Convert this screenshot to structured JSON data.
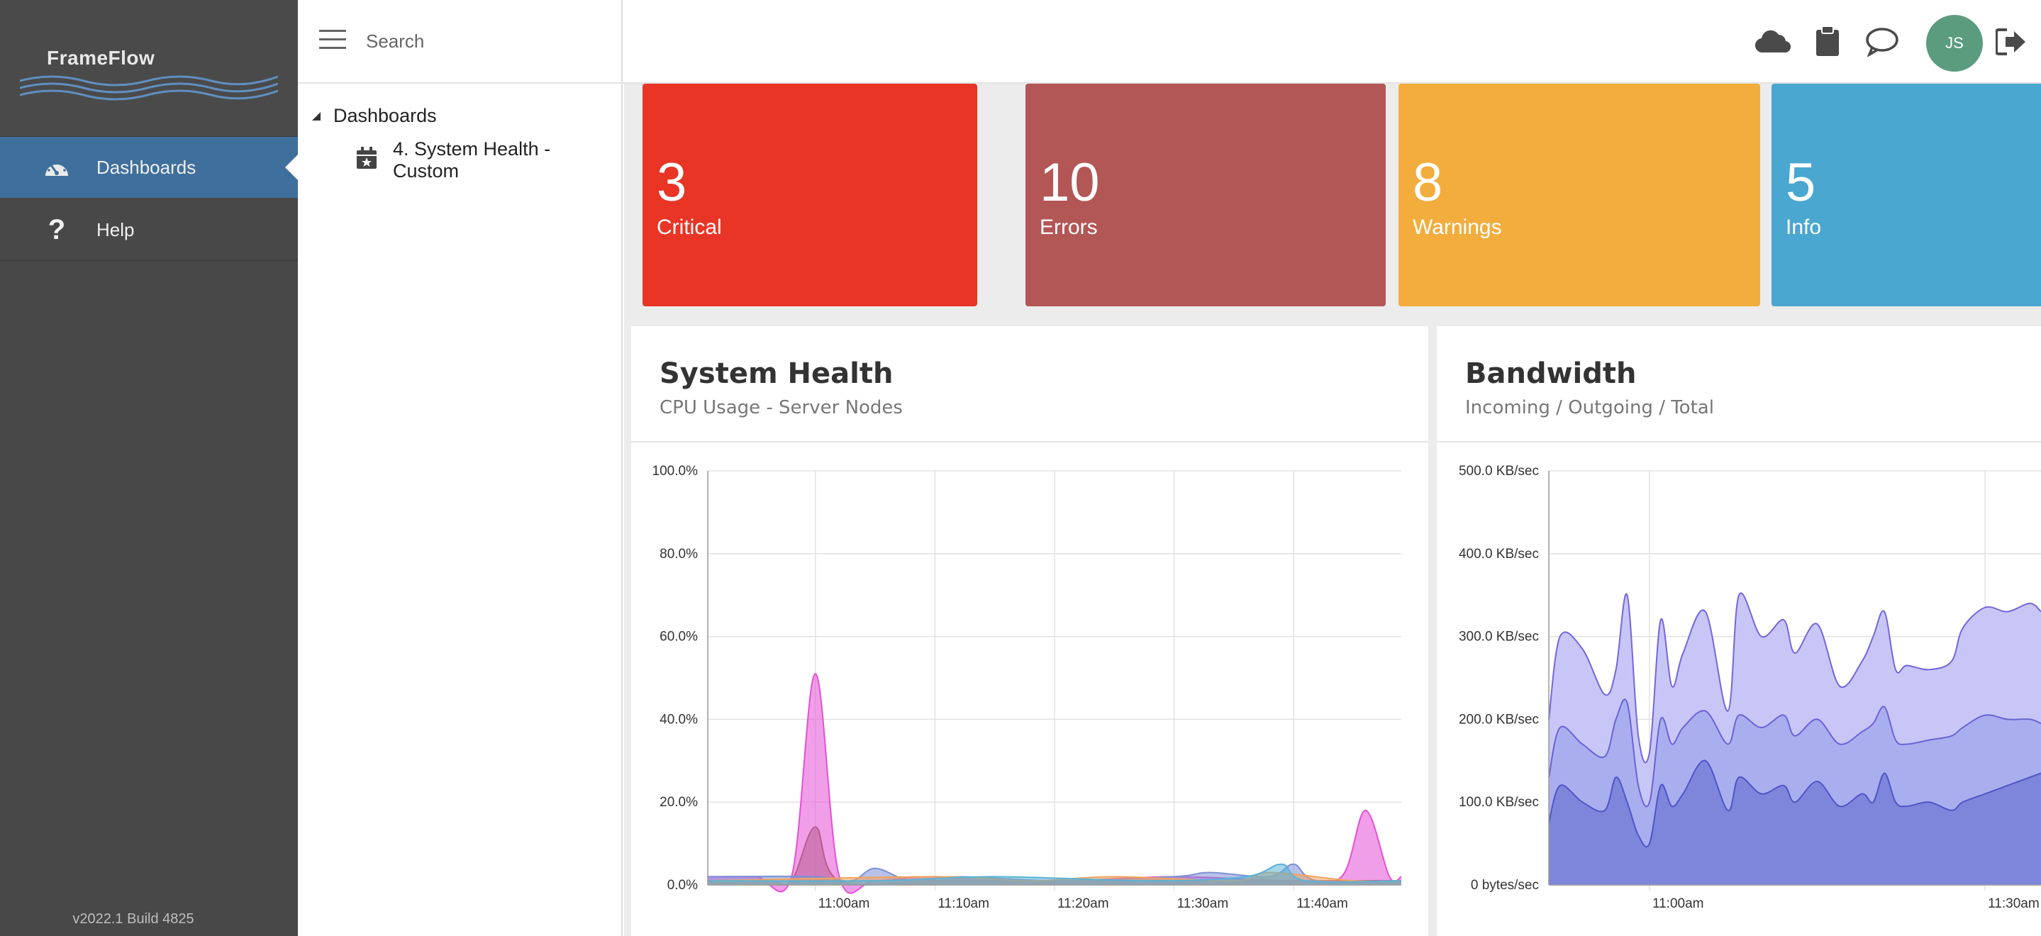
{
  "app": {
    "logo_text": "FrameFlow",
    "version": "v2022.1 Build 4825"
  },
  "sidebar": {
    "items": [
      {
        "label": "Dashboards",
        "icon": "speedometer-icon",
        "active": true
      },
      {
        "label": "Help",
        "icon": "question-icon",
        "active": false
      }
    ]
  },
  "search": {
    "placeholder": "Search",
    "value": ""
  },
  "tree": {
    "root_label": "Dashboards",
    "child_label": "4. System Health - Custom"
  },
  "topbar": {
    "icons": [
      "cloud-icon",
      "clipboard-icon",
      "chat-icon",
      "logout-icon"
    ],
    "avatar_initials": "JS"
  },
  "tiles": [
    {
      "value": "3",
      "label": "Critical",
      "color": "#e93526"
    },
    {
      "value": "10",
      "label": "Errors",
      "color": "#b35656"
    },
    {
      "value": "8",
      "label": "Warnings",
      "color": "#f2ad3d"
    },
    {
      "value": "5",
      "label": "Info",
      "color": "#4aa7cf"
    }
  ],
  "panels": {
    "system_health": {
      "title": "System Health",
      "subtitle": "CPU Usage - Server Nodes"
    },
    "bandwidth": {
      "title": "Bandwidth",
      "subtitle": "Incoming / Outgoing / Total"
    }
  },
  "chart_data": [
    {
      "type": "area",
      "title": "System Health",
      "subtitle": "CPU Usage - Server Nodes",
      "ylabel": "",
      "xlabel": "",
      "ylim": [
        0,
        100
      ],
      "y_ticks": [
        "0.0%",
        "20.0%",
        "40.0%",
        "60.0%",
        "80.0%",
        "100.0%"
      ],
      "x_ticks": [
        "11:00am",
        "11:10am",
        "11:20am",
        "11:30am",
        "11:40am"
      ],
      "x_range_minutes": [
        -9,
        49
      ],
      "grid": true,
      "series": [
        {
          "color": "#e64fd6",
          "x": [
            -9,
            -5,
            -2,
            0,
            2,
            5,
            10,
            20,
            30,
            40,
            44,
            46,
            48,
            49
          ],
          "values": [
            2,
            2,
            2,
            51,
            2,
            1,
            2,
            1,
            2,
            1,
            2,
            18,
            2,
            2
          ]
        },
        {
          "color": "#b85d8f",
          "x": [
            -9,
            -4,
            -2,
            0,
            2,
            10,
            20,
            30,
            40,
            49
          ],
          "values": [
            1,
            1,
            1,
            14,
            1,
            1,
            1,
            1,
            1,
            1
          ]
        },
        {
          "color": "#7d8fd6",
          "x": [
            -9,
            0,
            3,
            5,
            8,
            12,
            20,
            30,
            33,
            38,
            40,
            42,
            49
          ],
          "values": [
            2,
            2,
            1,
            4,
            1,
            2,
            1,
            2,
            3,
            2,
            5,
            1,
            1
          ]
        },
        {
          "color": "#f0a35e",
          "x": [
            -9,
            10,
            18,
            25,
            35,
            38,
            45,
            49
          ],
          "values": [
            1,
            2,
            1,
            2,
            1,
            3,
            1,
            1
          ]
        },
        {
          "color": "#59b3d6",
          "x": [
            -9,
            5,
            15,
            28,
            36,
            39,
            41,
            49
          ],
          "values": [
            1,
            1,
            2,
            1,
            2,
            5,
            1,
            1
          ]
        }
      ]
    },
    {
      "type": "area",
      "title": "Bandwidth",
      "subtitle": "Incoming / Outgoing / Total",
      "ylim": [
        0,
        500
      ],
      "y_ticks": [
        "0 bytes/sec",
        "100.0 KB/sec",
        "200.0 KB/sec",
        "300.0 KB/sec",
        "400.0 KB/sec",
        "500.0 KB/sec"
      ],
      "x_ticks": [
        "11:00am",
        "11:30am"
      ],
      "x_range_minutes": [
        -9,
        35
      ],
      "grid": true,
      "series": [
        {
          "name": "Total",
          "color": "#c5c3f5",
          "line": "#7466dc",
          "x": [
            -9,
            -8,
            -6,
            -4,
            -3,
            -2,
            -1,
            0,
            1,
            2,
            3,
            5,
            7,
            8,
            10,
            12,
            13,
            15,
            17,
            19,
            20,
            21,
            22,
            23,
            25,
            27,
            28,
            30,
            32,
            34,
            35
          ],
          "values": [
            200,
            300,
            285,
            230,
            260,
            350,
            180,
            160,
            320,
            240,
            280,
            330,
            210,
            350,
            300,
            320,
            280,
            315,
            240,
            270,
            300,
            330,
            260,
            265,
            260,
            270,
            310,
            335,
            330,
            340,
            330
          ]
        },
        {
          "name": "Outgoing",
          "color": "#a8adee",
          "line": "#6a63d6",
          "x": [
            -9,
            -8,
            -6,
            -4,
            -3,
            -2,
            -1,
            0,
            1,
            2,
            3,
            5,
            7,
            8,
            10,
            12,
            13,
            15,
            17,
            19,
            20,
            21,
            22,
            23,
            25,
            27,
            28,
            30,
            32,
            34,
            35
          ],
          "values": [
            130,
            190,
            170,
            155,
            200,
            220,
            120,
            100,
            200,
            170,
            190,
            210,
            170,
            205,
            190,
            205,
            180,
            200,
            170,
            185,
            195,
            215,
            175,
            170,
            175,
            180,
            190,
            205,
            200,
            200,
            195
          ]
        },
        {
          "name": "Incoming",
          "color": "#7b84d9",
          "line": "#4f55c7",
          "x": [
            -9,
            -8,
            -6,
            -4,
            -3,
            -2,
            -1,
            0,
            1,
            2,
            3,
            5,
            7,
            8,
            10,
            12,
            13,
            15,
            17,
            19,
            20,
            21,
            22,
            23,
            25,
            27,
            28,
            30,
            32,
            34,
            35
          ],
          "values": [
            75,
            120,
            100,
            90,
            130,
            100,
            60,
            50,
            120,
            95,
            110,
            150,
            90,
            130,
            110,
            120,
            100,
            125,
            95,
            110,
            100,
            135,
            100,
            95,
            100,
            90,
            100,
            110,
            120,
            130,
            135
          ]
        }
      ]
    }
  ]
}
